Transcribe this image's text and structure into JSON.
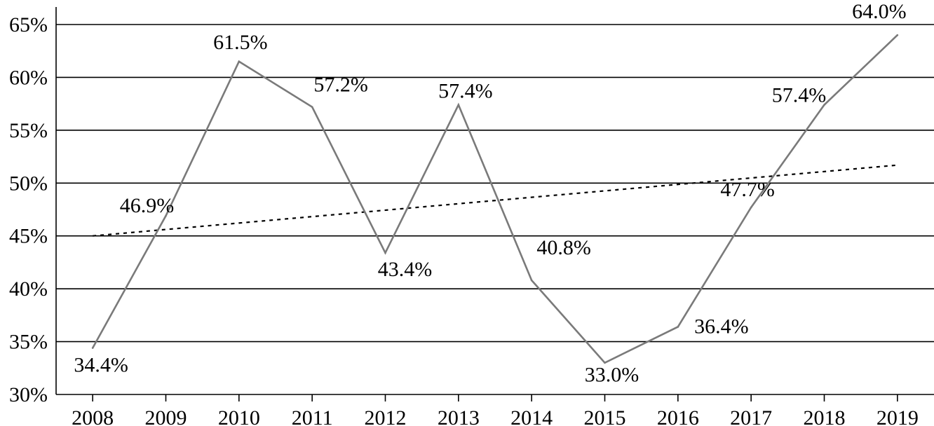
{
  "chart_data": {
    "type": "line",
    "x": [
      "2008",
      "2009",
      "2010",
      "2011",
      "2012",
      "2013",
      "2014",
      "2015",
      "2016",
      "2017",
      "2018",
      "2019"
    ],
    "series": [
      {
        "values": [
          34.4,
          46.9,
          61.5,
          57.2,
          43.4,
          57.4,
          40.8,
          33.0,
          36.4,
          47.7,
          57.4,
          64.0
        ],
        "data_labels": [
          "34.4%",
          "46.9%",
          "61.5%",
          "57.2%",
          "43.4%",
          "57.4%",
          "40.8%",
          "33.0%",
          "36.4%",
          "47.7%",
          "57.4%",
          "64.0%"
        ],
        "color": "#7a7a7a",
        "style": "solid"
      }
    ],
    "trendline": {
      "style": "dotted",
      "color": "#000000",
      "start": 45.0,
      "end": 51.7
    },
    "yticks": [
      30,
      35,
      40,
      45,
      50,
      55,
      60,
      65
    ],
    "ytick_labels": [
      "30%",
      "35%",
      "40%",
      "45%",
      "50%",
      "55%",
      "60%",
      "65%"
    ],
    "ylim": [
      30,
      65
    ],
    "grid": "horizontal",
    "legend": "none",
    "title": "",
    "xlabel": "",
    "ylabel": ""
  }
}
